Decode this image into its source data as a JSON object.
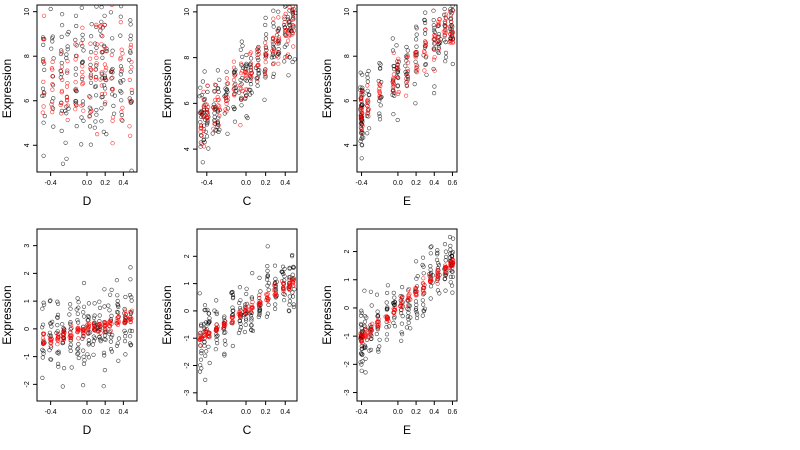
{
  "chart_data": [
    {
      "type": "scatter",
      "panel": "top-left",
      "xlabel": "D",
      "ylabel": "Expression",
      "xlim": [
        -0.55,
        0.55
      ],
      "ylim": [
        2.8,
        10.3
      ],
      "xticks": [
        -0.4,
        0.0,
        0.2,
        0.4
      ],
      "xtick_labels": [
        "-0.4",
        "0.0",
        "0.2",
        "0.4"
      ],
      "yticks": [
        4,
        6,
        8,
        10
      ],
      "ytick_labels": [
        "4",
        "6",
        "8",
        "10"
      ],
      "colors": {
        "observed": "#000000",
        "fitted": "#ff0000"
      },
      "trend": {
        "kind": "none",
        "intercept": 7.2,
        "slope": 0.4,
        "noise": 1.6,
        "fitted_noise": 1.3
      },
      "x_levels": [
        -0.48,
        -0.38,
        -0.28,
        -0.22,
        -0.12,
        -0.05,
        0.04,
        0.1,
        0.16,
        0.2,
        0.28,
        0.38,
        0.48
      ]
    },
    {
      "type": "scatter",
      "panel": "top-middle",
      "xlabel": "C",
      "ylabel": "Expression",
      "xlim": [
        -0.5,
        0.52
      ],
      "ylim": [
        3.0,
        10.3
      ],
      "xticks": [
        -0.4,
        0.0,
        0.2,
        0.4
      ],
      "xtick_labels": [
        "-0.4",
        "0.0",
        "0.2",
        "0.4"
      ],
      "yticks": [
        4,
        6,
        8,
        10
      ],
      "ytick_labels": [
        "4",
        "6",
        "8",
        "10"
      ],
      "colors": {
        "observed": "#000000",
        "fitted": "#ff0000"
      },
      "trend": {
        "kind": "linear",
        "intercept": 7.2,
        "slope": 4.8,
        "noise": 0.8,
        "fitted_noise": 0.6
      },
      "x_levels": [
        -0.46,
        -0.43,
        -0.4,
        -0.32,
        -0.28,
        -0.2,
        -0.12,
        -0.05,
        0.0,
        0.05,
        0.12,
        0.2,
        0.28,
        0.33,
        0.4,
        0.44,
        0.48
      ]
    },
    {
      "type": "scatter",
      "panel": "top-right",
      "xlabel": "E",
      "ylabel": "Expression",
      "xlim": [
        -0.45,
        0.65
      ],
      "ylim": [
        2.8,
        10.3
      ],
      "xticks": [
        -0.4,
        0.0,
        0.2,
        0.4,
        0.6
      ],
      "xtick_labels": [
        "-0.4",
        "0.0",
        "0.2",
        "0.4",
        "0.6"
      ],
      "yticks": [
        4,
        6,
        8,
        10
      ],
      "ytick_labels": [
        "4",
        "6",
        "8",
        "10"
      ],
      "colors": {
        "observed": "#000000",
        "fitted": "#ff0000"
      },
      "trend": {
        "kind": "linear",
        "intercept": 7.1,
        "slope": 4.0,
        "noise": 0.9,
        "fitted_noise": 0.5
      },
      "x_levels": [
        -0.4,
        -0.4,
        -0.4,
        -0.33,
        -0.2,
        -0.05,
        0.0,
        0.1,
        0.2,
        0.3,
        0.4,
        0.45,
        0.52,
        0.58,
        0.6
      ]
    },
    {
      "type": "scatter",
      "panel": "bottom-left",
      "xlabel": "D",
      "ylabel": "Expression",
      "xlim": [
        -0.55,
        0.55
      ],
      "ylim": [
        -2.6,
        3.6
      ],
      "xticks": [
        -0.4,
        0.0,
        0.2,
        0.4
      ],
      "xtick_labels": [
        "-0.4",
        "0.0",
        "0.2",
        "0.4"
      ],
      "yticks": [
        -2,
        -1,
        0,
        1,
        2,
        3
      ],
      "ytick_labels": [
        "-2",
        "-1",
        "0",
        "1",
        "2",
        "3"
      ],
      "colors": {
        "observed": "#000000",
        "fitted": "#ff0000"
      },
      "trend": {
        "kind": "linear",
        "intercept": 0.0,
        "slope": 0.9,
        "noise": 0.7,
        "fitted_noise": 0.12
      },
      "x_levels": [
        -0.48,
        -0.4,
        -0.32,
        -0.26,
        -0.18,
        -0.1,
        -0.04,
        0.02,
        0.08,
        0.14,
        0.2,
        0.26,
        0.34,
        0.42,
        0.48
      ]
    },
    {
      "type": "scatter",
      "panel": "bottom-middle",
      "xlabel": "C",
      "ylabel": "Expression",
      "xlim": [
        -0.5,
        0.52
      ],
      "ylim": [
        -3.3,
        3.0
      ],
      "xticks": [
        -0.4,
        0.0,
        0.2,
        0.4
      ],
      "xtick_labels": [
        "-0.4",
        "0.0",
        "0.2",
        "0.4"
      ],
      "yticks": [
        -3,
        -2,
        -1,
        0,
        1,
        2
      ],
      "ytick_labels": [
        "-3",
        "-2",
        "-1",
        "0",
        "1",
        "2"
      ],
      "colors": {
        "observed": "#000000",
        "fitted": "#ff0000"
      },
      "trend": {
        "kind": "linear",
        "intercept": 0.0,
        "slope": 2.25,
        "noise": 0.55,
        "fitted_noise": 0.1
      },
      "x_levels": [
        -0.46,
        -0.42,
        -0.38,
        -0.3,
        -0.22,
        -0.14,
        -0.06,
        0.0,
        0.06,
        0.14,
        0.22,
        0.3,
        0.38,
        0.44,
        0.48
      ]
    },
    {
      "type": "scatter",
      "panel": "bottom-right",
      "xlabel": "E",
      "ylabel": "Expression",
      "xlim": [
        -0.45,
        0.65
      ],
      "ylim": [
        -3.3,
        2.8
      ],
      "xticks": [
        -0.4,
        0.0,
        0.2,
        0.4,
        0.6
      ],
      "xtick_labels": [
        "-0.4",
        "0.0",
        "0.2",
        "0.4",
        "0.6"
      ],
      "yticks": [
        -3,
        -2,
        -1,
        0,
        1,
        2
      ],
      "ytick_labels": [
        "-3",
        "-2",
        "-1",
        "0",
        "1",
        "2"
      ],
      "colors": {
        "observed": "#000000",
        "fitted": "#ff0000"
      },
      "trend": {
        "kind": "linear",
        "intercept": 0.0,
        "slope": 2.7,
        "noise": 0.55,
        "fitted_noise": 0.12
      },
      "x_levels": [
        -0.4,
        -0.4,
        -0.36,
        -0.3,
        -0.22,
        -0.12,
        -0.04,
        0.04,
        0.12,
        0.2,
        0.28,
        0.36,
        0.44,
        0.52,
        0.58,
        0.6
      ]
    }
  ]
}
